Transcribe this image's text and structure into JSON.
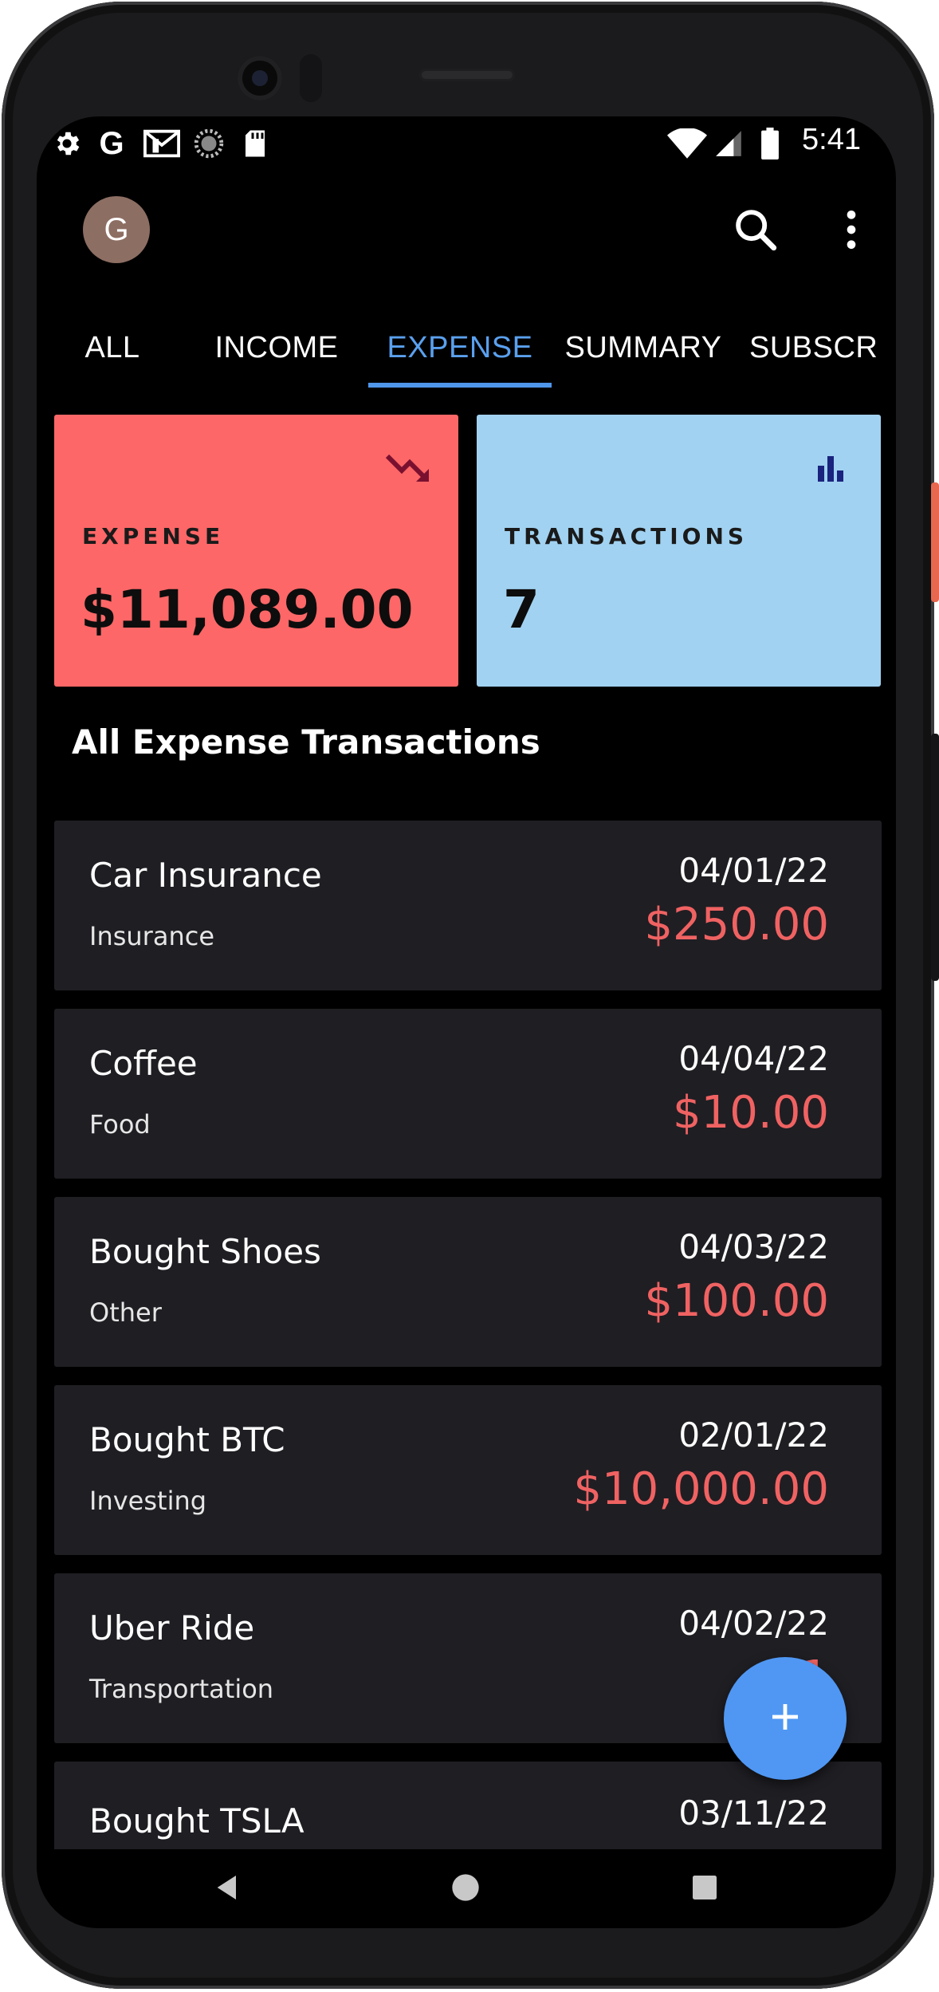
{
  "status_bar": {
    "time": "5:41",
    "left_icons": [
      "settings-icon",
      "google-icon",
      "gmail-icon",
      "sync-icon",
      "sd-card-icon"
    ],
    "right_icons": [
      "wifi-icon",
      "cellular-icon",
      "battery-icon"
    ]
  },
  "app_bar": {
    "avatar_initial": "G",
    "actions": [
      "search-icon",
      "more-vert-icon"
    ]
  },
  "tabs": [
    {
      "label": "ALL",
      "active": false
    },
    {
      "label": "INCOME",
      "active": false
    },
    {
      "label": "EXPENSE",
      "active": true
    },
    {
      "label": "SUMMARY",
      "active": false
    },
    {
      "label": "SUBSCR",
      "active": false
    }
  ],
  "summary_cards": {
    "expense": {
      "label": "EXPENSE",
      "value": "$11,089.00",
      "icon": "trending-down-icon",
      "color": "#fe6767"
    },
    "transactions": {
      "label": "TRANSACTIONS",
      "value": "7",
      "icon": "bar-chart-icon",
      "color": "#a1d2f1"
    }
  },
  "section_title": "All Expense Transactions",
  "transactions": [
    {
      "title": "Car Insurance",
      "category": "Insurance",
      "date": "04/01/22",
      "amount": "$250.00"
    },
    {
      "title": "Coffee",
      "category": "Food",
      "date": "04/04/22",
      "amount": "$10.00"
    },
    {
      "title": "Bought Shoes",
      "category": "Other",
      "date": "04/03/22",
      "amount": "$100.00"
    },
    {
      "title": "Bought BTC",
      "category": "Investing",
      "date": "02/01/22",
      "amount": "$10,000.00"
    },
    {
      "title": "Uber Ride",
      "category": "Transportation",
      "date": "04/02/22",
      "amount": "$1"
    },
    {
      "title": "Bought TSLA",
      "category": "",
      "date": "03/11/22",
      "amount": ""
    }
  ],
  "fab": {
    "icon": "add-icon"
  },
  "nav_bar": {
    "buttons": [
      "back-icon",
      "home-icon",
      "recents-icon"
    ]
  },
  "colors": {
    "accent": "#5aa0ee",
    "expense_amount": "#f06262",
    "card_bg": "#1f1e23",
    "fab": "#4f97f3"
  }
}
